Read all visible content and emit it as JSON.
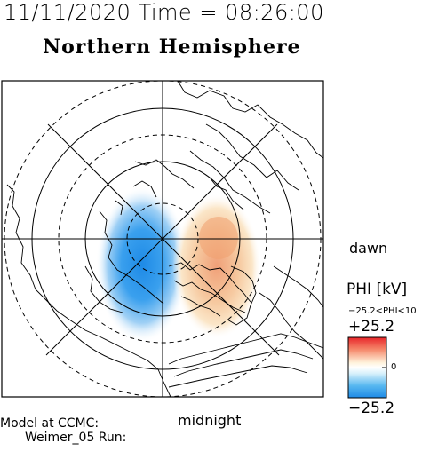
{
  "header": {
    "datetime": "11/11/2020 Time = 08:26:00",
    "title": "Northern Hemisphere"
  },
  "orientation": {
    "right_label": "dawn",
    "bottom_label": "midnight"
  },
  "colorbar": {
    "title": "PHI [kV]",
    "range_text": "−25.2<PHI<10",
    "max_label": "+25.2",
    "zero_label": "0",
    "min_label": "−25.2",
    "colors": {
      "max": "#e8262a",
      "mid": "#ffffff",
      "min": "#1e8ae6"
    }
  },
  "footer": {
    "line1": "Model at CCMC:",
    "line2": "Weimer_05 Run:"
  },
  "map": {
    "pole_view": "north",
    "potential_cells": [
      {
        "sign": "negative",
        "peak_kV": -25.2
      },
      {
        "sign": "positive",
        "peak_kV": 10
      }
    ]
  }
}
